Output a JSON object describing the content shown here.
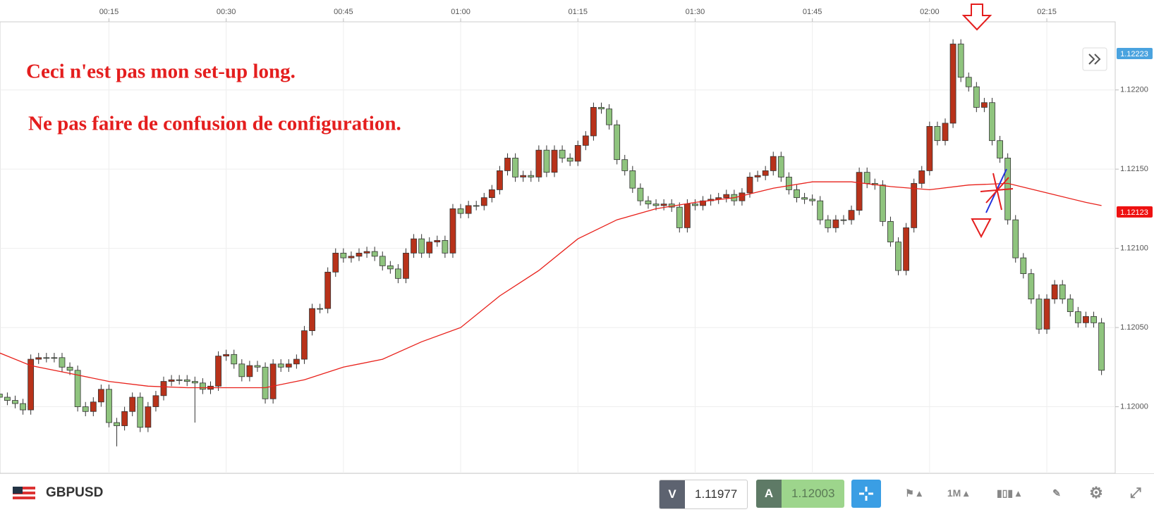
{
  "toolbar": {
    "symbol": "GBPUSD",
    "sell_label": "V",
    "sell_price": "1.11977",
    "buy_label": "A",
    "buy_price": "1.12003",
    "timeframe": "1M"
  },
  "annotations": [
    "Ceci n'est pas mon set-up long.",
    "Ne pas faire de confusion de configuration."
  ],
  "chart_data": {
    "type": "candlestick",
    "x": [
      1,
      2,
      3,
      4,
      5,
      6,
      7,
      8,
      9,
      10,
      11,
      12,
      13,
      14,
      15,
      16,
      17,
      18,
      19,
      20,
      21,
      22,
      23,
      24,
      25,
      26,
      27,
      28,
      29,
      30,
      31,
      32,
      33,
      34,
      35,
      36,
      37,
      38,
      39,
      40,
      41,
      42,
      43,
      44,
      45,
      46,
      47,
      48,
      49,
      50,
      51,
      52,
      53,
      54,
      55,
      56,
      57,
      58,
      59,
      60,
      61,
      62,
      63,
      64,
      65,
      66,
      67,
      68,
      69,
      70,
      71,
      72,
      73,
      74,
      75,
      76,
      77,
      78,
      79,
      80,
      81,
      82,
      83,
      84,
      85,
      86,
      87,
      88,
      89,
      90,
      91,
      92,
      93,
      94,
      95,
      96,
      97,
      98,
      99,
      100,
      101,
      102,
      103,
      104,
      105,
      106,
      107,
      108,
      109,
      110,
      111,
      112,
      113,
      114,
      115,
      116,
      117,
      118,
      119,
      120,
      121,
      122,
      123,
      124,
      125,
      126,
      127,
      128,
      129,
      130,
      131,
      132,
      133,
      134,
      135,
      136,
      137,
      138,
      139,
      140,
      141,
      142
    ],
    "open": [
      1.12008,
      1.12006,
      1.12004,
      1.12002,
      1.11998,
      1.1203,
      1.12031,
      1.12031,
      1.12031,
      1.12025,
      1.12023,
      1.12,
      1.11997,
      1.12003,
      1.12011,
      1.1199,
      1.11988,
      1.11997,
      1.12006,
      1.11987,
      1.12,
      1.12007,
      1.12016,
      1.12017,
      1.12017,
      1.12016,
      1.12015,
      1.12011,
      1.12013,
      1.12032,
      1.12033,
      1.12027,
      1.12019,
      1.12026,
      1.12025,
      1.12005,
      1.12027,
      1.12025,
      1.12027,
      1.1203,
      1.12048,
      1.12062,
      1.12062,
      1.12085,
      1.12097,
      1.12094,
      1.12095,
      1.12097,
      1.12098,
      1.12095,
      1.12089,
      1.12087,
      1.12081,
      1.12097,
      1.12106,
      1.12097,
      1.12104,
      1.12105,
      1.12097,
      1.12125,
      1.12122,
      1.12127,
      1.12127,
      1.12132,
      1.12137,
      1.12149,
      1.12157,
      1.12145,
      1.12146,
      1.12145,
      1.12162,
      1.12148,
      1.12162,
      1.12157,
      1.12155,
      1.12165,
      1.12171,
      1.12189,
      1.12188,
      1.12178,
      1.12156,
      1.12149,
      1.12138,
      1.1213,
      1.12128,
      1.12127,
      1.12128,
      1.12126,
      1.12113,
      1.12128,
      1.12127,
      1.1213,
      1.12131,
      1.12132,
      1.12134,
      1.1213,
      1.12135,
      1.12145,
      1.12146,
      1.12149,
      1.12158,
      1.12145,
      1.12137,
      1.12132,
      1.12131,
      1.1213,
      1.12118,
      1.12113,
      1.12118,
      1.12118,
      1.12124,
      1.12148,
      1.12141,
      1.1214,
      1.12117,
      1.12104,
      1.12086,
      1.12113,
      1.12141,
      1.12149,
      1.12177,
      1.12168,
      1.12179,
      1.12229,
      1.12208,
      1.12202,
      1.12189,
      1.12192,
      1.12168,
      1.12157,
      1.12118,
      1.12094,
      1.12084,
      1.12068,
      1.12049,
      1.12068,
      1.12077,
      1.12068,
      1.1206,
      1.12053,
      1.12057,
      1.12053
    ],
    "high": [
      1.12011,
      1.12009,
      1.12007,
      1.12005,
      1.12033,
      1.12034,
      1.12034,
      1.12034,
      1.12034,
      1.12028,
      1.12026,
      1.12003,
      1.12006,
      1.12014,
      1.12014,
      1.11993,
      1.12,
      1.12009,
      1.12009,
      1.12003,
      1.1201,
      1.12019,
      1.1202,
      1.1202,
      1.1202,
      1.12019,
      1.12018,
      1.12016,
      1.12035,
      1.12036,
      1.12036,
      1.1203,
      1.12029,
      1.12029,
      1.12028,
      1.1203,
      1.1203,
      1.1203,
      1.12033,
      1.12051,
      1.12065,
      1.12065,
      1.12088,
      1.121,
      1.121,
      1.12098,
      1.121,
      1.12101,
      1.12101,
      1.12098,
      1.12092,
      1.1209,
      1.121,
      1.12109,
      1.12109,
      1.12107,
      1.12108,
      1.12108,
      1.12128,
      1.12128,
      1.1213,
      1.1213,
      1.12135,
      1.1214,
      1.12152,
      1.1216,
      1.1216,
      1.12149,
      1.12149,
      1.12165,
      1.12165,
      1.12165,
      1.12165,
      1.1216,
      1.12168,
      1.12174,
      1.12192,
      1.12192,
      1.12191,
      1.12181,
      1.12159,
      1.12152,
      1.12141,
      1.12133,
      1.12131,
      1.12131,
      1.12131,
      1.12129,
      1.12131,
      1.12131,
      1.12133,
      1.12134,
      1.12135,
      1.12137,
      1.12137,
      1.12138,
      1.12148,
      1.12149,
      1.12152,
      1.12161,
      1.12161,
      1.12148,
      1.1214,
      1.12135,
      1.12134,
      1.12133,
      1.12121,
      1.12121,
      1.12121,
      1.12127,
      1.12151,
      1.12151,
      1.12144,
      1.12143,
      1.1212,
      1.12107,
      1.12116,
      1.12144,
      1.12152,
      1.1218,
      1.1218,
      1.12182,
      1.12232,
      1.12232,
      1.12211,
      1.12205,
      1.12195,
      1.12195,
      1.12171,
      1.1216,
      1.12121,
      1.12097,
      1.12087,
      1.12071,
      1.12071,
      1.1208,
      1.1208,
      1.12071,
      1.12063,
      1.1206,
      1.1206,
      1.12056
    ],
    "low": [
      1.12003,
      1.12001,
      1.11999,
      1.11995,
      1.11995,
      1.12027,
      1.12028,
      1.12028,
      1.12022,
      1.1202,
      1.11997,
      1.11994,
      1.11994,
      1.12,
      1.11987,
      1.11975,
      1.11985,
      1.11994,
      1.11984,
      1.11984,
      1.11997,
      1.12004,
      1.12013,
      1.12014,
      1.12013,
      1.1199,
      1.12008,
      1.12008,
      1.1201,
      1.12029,
      1.12024,
      1.12016,
      1.12016,
      1.12022,
      1.12002,
      1.12002,
      1.12022,
      1.12022,
      1.12024,
      1.12027,
      1.12045,
      1.12059,
      1.12059,
      1.12082,
      1.12091,
      1.12091,
      1.12092,
      1.12094,
      1.12092,
      1.12086,
      1.12084,
      1.12078,
      1.12078,
      1.12094,
      1.12094,
      1.12094,
      1.12101,
      1.12094,
      1.12094,
      1.12119,
      1.12119,
      1.12124,
      1.12124,
      1.12129,
      1.12134,
      1.12146,
      1.12142,
      1.12142,
      1.12142,
      1.12142,
      1.12145,
      1.12145,
      1.12154,
      1.12152,
      1.12152,
      1.12162,
      1.12168,
      1.12185,
      1.12175,
      1.12153,
      1.12146,
      1.12135,
      1.12127,
      1.12125,
      1.12124,
      1.12124,
      1.12123,
      1.1211,
      1.1211,
      1.12124,
      1.12124,
      1.12127,
      1.12128,
      1.12129,
      1.12127,
      1.12127,
      1.12132,
      1.12142,
      1.12143,
      1.12146,
      1.12142,
      1.12134,
      1.12129,
      1.12128,
      1.12127,
      1.12115,
      1.1211,
      1.1211,
      1.12115,
      1.12115,
      1.12121,
      1.12138,
      1.12137,
      1.12114,
      1.12101,
      1.12083,
      1.12083,
      1.1211,
      1.12138,
      1.12146,
      1.12165,
      1.12165,
      1.12176,
      1.12205,
      1.12199,
      1.12186,
      1.12186,
      1.12165,
      1.12154,
      1.12115,
      1.12091,
      1.12081,
      1.12065,
      1.12046,
      1.12046,
      1.12065,
      1.12065,
      1.12057,
      1.1205,
      1.1205,
      1.1205,
      1.1202
    ],
    "close": [
      1.12006,
      1.12004,
      1.12002,
      1.11998,
      1.1203,
      1.12031,
      1.12031,
      1.12031,
      1.12025,
      1.12023,
      1.12,
      1.11997,
      1.12003,
      1.12011,
      1.1199,
      1.11988,
      1.11997,
      1.12006,
      1.11987,
      1.12,
      1.12007,
      1.12016,
      1.12017,
      1.12017,
      1.12016,
      1.12015,
      1.12011,
      1.12013,
      1.12032,
      1.12033,
      1.12027,
      1.12019,
      1.12026,
      1.12025,
      1.12005,
      1.12027,
      1.12025,
      1.12027,
      1.1203,
      1.12048,
      1.12062,
      1.12062,
      1.12085,
      1.12097,
      1.12094,
      1.12095,
      1.12097,
      1.12098,
      1.12095,
      1.12089,
      1.12087,
      1.12081,
      1.12097,
      1.12106,
      1.12097,
      1.12104,
      1.12105,
      1.12097,
      1.12125,
      1.12122,
      1.12127,
      1.12127,
      1.12132,
      1.12137,
      1.12149,
      1.12157,
      1.12145,
      1.12146,
      1.12145,
      1.12162,
      1.12148,
      1.12162,
      1.12157,
      1.12155,
      1.12165,
      1.12171,
      1.12189,
      1.12188,
      1.12178,
      1.12156,
      1.12149,
      1.12138,
      1.1213,
      1.12128,
      1.12127,
      1.12128,
      1.12126,
      1.12113,
      1.12128,
      1.12127,
      1.1213,
      1.12131,
      1.12132,
      1.12134,
      1.1213,
      1.12135,
      1.12145,
      1.12146,
      1.12149,
      1.12158,
      1.12145,
      1.12137,
      1.12132,
      1.12131,
      1.1213,
      1.12118,
      1.12113,
      1.12118,
      1.12118,
      1.12124,
      1.12148,
      1.12141,
      1.1214,
      1.12117,
      1.12104,
      1.12086,
      1.12113,
      1.12141,
      1.12149,
      1.12177,
      1.12168,
      1.12179,
      1.12229,
      1.12208,
      1.12202,
      1.12189,
      1.12192,
      1.12168,
      1.12157,
      1.12118,
      1.12094,
      1.12084,
      1.12068,
      1.12049,
      1.12068,
      1.12077,
      1.12068,
      1.1206,
      1.12053,
      1.12057,
      1.12053,
      1.12023
    ],
    "up_color": "#b8321a",
    "down_color": "#8fc47e",
    "xlim": [
      1.06,
      143.75
    ],
    "xticks": [
      {
        "value": 15,
        "label": "00:15"
      },
      {
        "value": 30,
        "label": "00:30"
      },
      {
        "value": 45,
        "label": "00:45"
      },
      {
        "value": 60,
        "label": "01:00"
      },
      {
        "value": 75,
        "label": "01:15"
      },
      {
        "value": 90,
        "label": "01:30"
      },
      {
        "value": 105,
        "label": "01:45"
      },
      {
        "value": 120,
        "label": "02:00"
      },
      {
        "value": 135,
        "label": "02:15"
      }
    ],
    "ylim": [
      1.11958,
      1.12243
    ],
    "yticks": [
      {
        "value": 1.12,
        "label": "1.12000"
      },
      {
        "value": 1.1205,
        "label": "1.12050"
      },
      {
        "value": 1.121,
        "label": "1.12100"
      },
      {
        "value": 1.1215,
        "label": "1.12150"
      },
      {
        "value": 1.122,
        "label": "1.12200"
      }
    ],
    "grid": true,
    "moving_average": {
      "color": "#e8201a",
      "x": [
        1,
        5,
        10,
        15,
        20,
        25,
        30,
        35,
        40,
        45,
        50,
        55,
        60,
        65,
        70,
        75,
        80,
        85,
        90,
        95,
        100,
        105,
        110,
        115,
        120,
        125,
        130,
        135,
        140,
        142
      ],
      "values": [
        1.12034,
        1.12026,
        1.12021,
        1.12016,
        1.12013,
        1.12012,
        1.12012,
        1.12012,
        1.12017,
        1.12025,
        1.1203,
        1.12041,
        1.1205,
        1.1207,
        1.12086,
        1.12106,
        1.12118,
        1.12125,
        1.12129,
        1.12132,
        1.12138,
        1.12142,
        1.12142,
        1.12139,
        1.12137,
        1.1214,
        1.12141,
        1.12135,
        1.12129,
        1.12127
      ]
    },
    "price_tags": [
      {
        "value": 1.12223,
        "color": "#4aa3df"
      },
      {
        "value": 1.12123,
        "color": "#ee1111"
      }
    ]
  }
}
